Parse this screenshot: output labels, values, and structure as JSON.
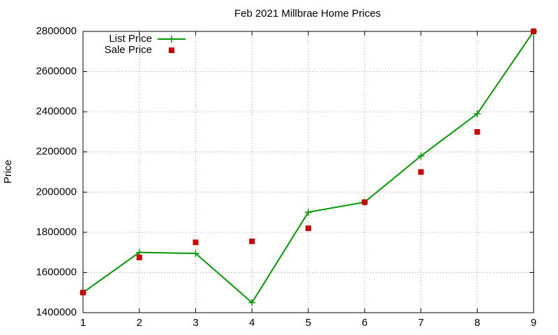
{
  "chart_data": {
    "type": "line",
    "title": "Feb 2021 Millbrae Home Prices",
    "y_label": "Price",
    "x": [
      1,
      2,
      3,
      4,
      5,
      6,
      7,
      8,
      9
    ],
    "xlim": [
      1,
      9
    ],
    "xticks": [
      1,
      2,
      3,
      4,
      5,
      6,
      7,
      8,
      9
    ],
    "ylim": [
      1400000,
      2800000
    ],
    "yticks": [
      1400000,
      1600000,
      1800000,
      2000000,
      2200000,
      2400000,
      2600000,
      2800000
    ],
    "grid": true,
    "legend": "top-left",
    "series": [
      {
        "name": "List Price",
        "color": "#009900",
        "mode": "lines+points",
        "marker": "plus",
        "values": [
          1500000,
          1700000,
          1695000,
          1450000,
          1900000,
          1950000,
          2180000,
          2390000,
          2800000
        ]
      },
      {
        "name": "Sale Price",
        "color": "#cc0000",
        "mode": "points",
        "marker": "square",
        "values": [
          1500000,
          1675000,
          1750000,
          1755000,
          1820000,
          1950000,
          2100000,
          2300000,
          2800000
        ]
      }
    ]
  }
}
